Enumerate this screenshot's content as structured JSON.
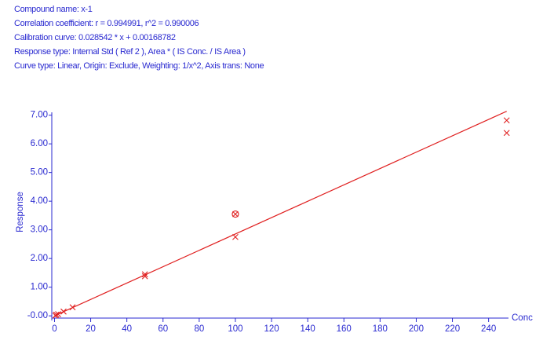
{
  "header": {
    "lines": [
      "Compound name: x-1",
      "Correlation coefficient: r = 0.994991, r^2 = 0.990006",
      "Calibration curve: 0.028542 * x + 0.00168782",
      "Response type: Internal Std ( Ref 2 ), Area * ( IS Conc. / IS Area )",
      "Curve type: Linear, Origin: Exclude, Weighting: 1/x^2, Axis trans: None"
    ]
  },
  "chart_data": {
    "type": "scatter",
    "xlabel": "Conc",
    "ylabel": "Response",
    "color": "#e02020",
    "xlim": [
      -1.5,
      251
    ],
    "ylim": [
      -0.16,
      7.1
    ],
    "xticks": [
      0,
      20,
      40,
      60,
      80,
      100,
      120,
      140,
      160,
      180,
      200,
      220,
      240
    ],
    "yticks": [
      {
        "value": 0,
        "label": "-0.00"
      },
      {
        "value": 1,
        "label": "1.00"
      },
      {
        "value": 2,
        "label": "2.00"
      },
      {
        "value": 3,
        "label": "3.00"
      },
      {
        "value": 4,
        "label": "4.00"
      },
      {
        "value": 5,
        "label": "5.00"
      },
      {
        "value": 6,
        "label": "6.00"
      },
      {
        "value": 7,
        "label": "7.00"
      }
    ],
    "points": {
      "x": [
        0.5,
        1,
        2,
        5,
        10,
        50,
        50,
        100,
        250,
        250
      ],
      "values": [
        0.01,
        0.04,
        0.06,
        0.15,
        0.3,
        1.45,
        1.38,
        2.75,
        6.82,
        6.38
      ]
    },
    "excluded_points": {
      "x": [
        100
      ],
      "values": [
        3.55
      ]
    },
    "fit_line": {
      "x": [
        0,
        250
      ],
      "values": [
        0.0017,
        7.137
      ]
    }
  }
}
